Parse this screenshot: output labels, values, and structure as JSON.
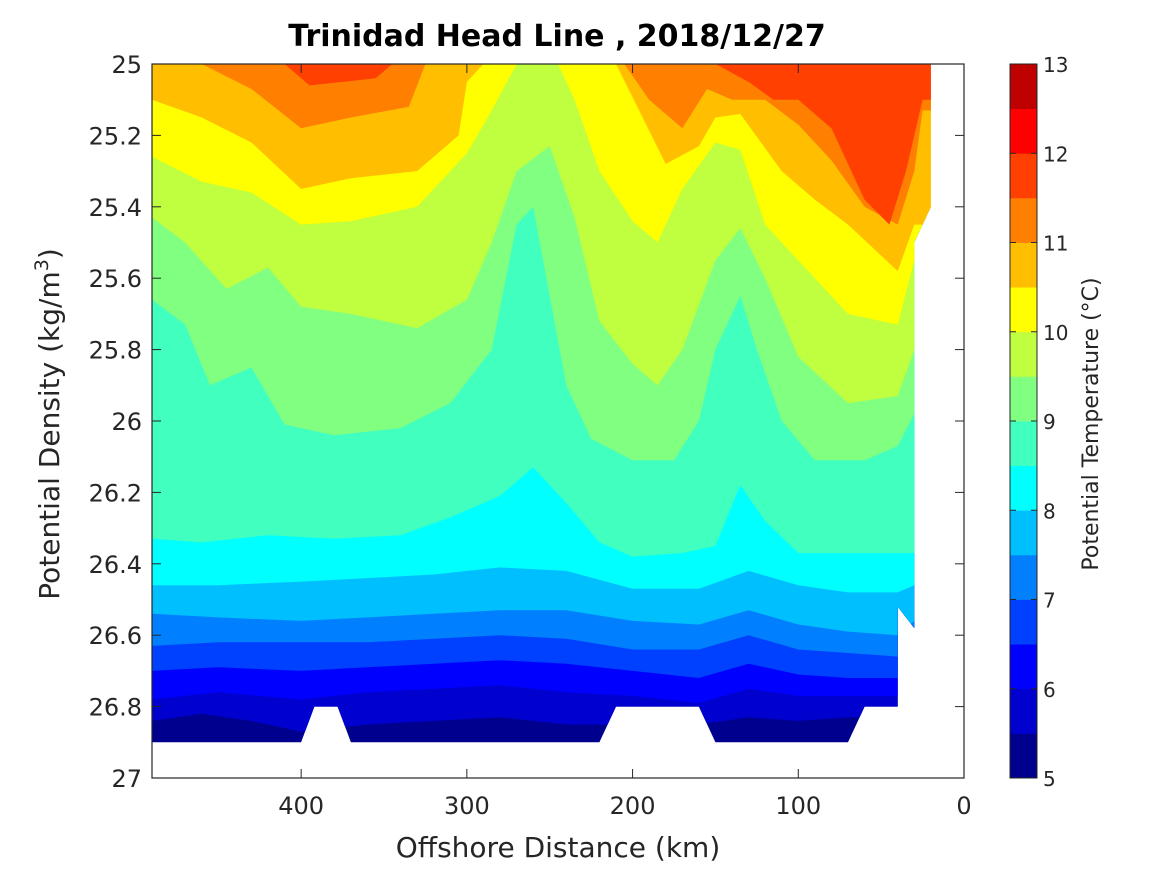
{
  "chart_data": {
    "type": "contour",
    "title": "Trinidad Head Line , 2018/12/27",
    "xlabel": "Offshore Distance (km)",
    "ylabel_prefix": "Potential Density (kg/m",
    "ylabel_sup": "3",
    "ylabel_suffix": ")",
    "xlim": [
      490,
      0
    ],
    "ylim": [
      25,
      27
    ],
    "x_ticks": [
      {
        "value": 400,
        "label": "400"
      },
      {
        "value": 300,
        "label": "300"
      },
      {
        "value": 200,
        "label": "200"
      },
      {
        "value": 100,
        "label": "100"
      },
      {
        "value": 0,
        "label": "0"
      }
    ],
    "y_ticks": [
      {
        "value": 25.0,
        "label": "25"
      },
      {
        "value": 25.2,
        "label": "25.2"
      },
      {
        "value": 25.4,
        "label": "25.4"
      },
      {
        "value": 25.6,
        "label": "25.6"
      },
      {
        "value": 25.8,
        "label": "25.8"
      },
      {
        "value": 26.0,
        "label": "26"
      },
      {
        "value": 26.2,
        "label": "26.2"
      },
      {
        "value": 26.4,
        "label": "26.4"
      },
      {
        "value": 26.6,
        "label": "26.6"
      },
      {
        "value": 26.8,
        "label": "26.8"
      },
      {
        "value": 27.0,
        "label": "27"
      }
    ],
    "colorbar": {
      "label": "Potential Temperature (°C)",
      "range": [
        5,
        13
      ],
      "levels": [
        5,
        5.5,
        6,
        6.5,
        7,
        7.5,
        8,
        8.5,
        9,
        9.5,
        10,
        10.5,
        11,
        11.5,
        12,
        12.5,
        13
      ],
      "colors": [
        "#00008f",
        "#0000cf",
        "#0000ff",
        "#0040ff",
        "#0080ff",
        "#00bfff",
        "#00ffff",
        "#40ffbf",
        "#80ff80",
        "#bfff40",
        "#ffff00",
        "#ffbf00",
        "#ff8000",
        "#ff4000",
        "#ff0000",
        "#bf0000"
      ],
      "ticks": [
        {
          "value": 5,
          "label": "5"
        },
        {
          "value": 6,
          "label": "6"
        },
        {
          "value": 7,
          "label": "7"
        },
        {
          "value": 8,
          "label": "8"
        },
        {
          "value": 9,
          "label": "9"
        },
        {
          "value": 10,
          "label": "10"
        },
        {
          "value": 11,
          "label": "11"
        },
        {
          "value": 12,
          "label": "12"
        },
        {
          "value": 13,
          "label": "13"
        }
      ]
    },
    "data_region": {
      "top_edge": [
        [
          490,
          25.0
        ],
        [
          20,
          25.0
        ],
        [
          20,
          25.4
        ],
        [
          30,
          25.5
        ],
        [
          30,
          26.58
        ],
        [
          40,
          26.52
        ],
        [
          40,
          26.8
        ]
      ],
      "bottom_edge": [
        [
          490,
          26.9
        ],
        [
          400,
          26.9
        ],
        [
          392,
          26.8
        ],
        [
          378,
          26.8
        ],
        [
          370,
          26.9
        ],
        [
          220,
          26.9
        ],
        [
          210,
          26.8
        ],
        [
          160,
          26.8
        ],
        [
          150,
          26.9
        ],
        [
          70,
          26.9
        ],
        [
          60,
          26.8
        ],
        [
          40,
          26.8
        ]
      ]
    },
    "isotherms": [
      {
        "t": 5.5,
        "points": [
          [
            490,
            26.84
          ],
          [
            460,
            26.82
          ],
          [
            430,
            26.84
          ],
          [
            400,
            26.87
          ],
          [
            380,
            26.86
          ],
          [
            360,
            26.85
          ],
          [
            320,
            26.84
          ],
          [
            280,
            26.83
          ],
          [
            240,
            26.85
          ],
          [
            200,
            26.85
          ],
          [
            160,
            26.85
          ],
          [
            130,
            26.83
          ],
          [
            100,
            26.84
          ],
          [
            70,
            26.83
          ],
          [
            40,
            26.83
          ]
        ]
      },
      {
        "t": 6,
        "points": [
          [
            490,
            26.78
          ],
          [
            450,
            26.76
          ],
          [
            400,
            26.78
          ],
          [
            360,
            26.76
          ],
          [
            320,
            26.75
          ],
          [
            280,
            26.74
          ],
          [
            240,
            26.76
          ],
          [
            200,
            26.77
          ],
          [
            160,
            26.79
          ],
          [
            130,
            26.75
          ],
          [
            100,
            26.77
          ],
          [
            70,
            26.77
          ],
          [
            40,
            26.77
          ]
        ]
      },
      {
        "t": 6.5,
        "points": [
          [
            490,
            26.7
          ],
          [
            450,
            26.69
          ],
          [
            400,
            26.7
          ],
          [
            360,
            26.69
          ],
          [
            320,
            26.68
          ],
          [
            280,
            26.67
          ],
          [
            240,
            26.68
          ],
          [
            200,
            26.7
          ],
          [
            160,
            26.72
          ],
          [
            130,
            26.68
          ],
          [
            100,
            26.71
          ],
          [
            70,
            26.72
          ],
          [
            40,
            26.72
          ]
        ]
      },
      {
        "t": 7,
        "points": [
          [
            490,
            26.63
          ],
          [
            450,
            26.62
          ],
          [
            400,
            26.62
          ],
          [
            360,
            26.62
          ],
          [
            320,
            26.61
          ],
          [
            280,
            26.6
          ],
          [
            240,
            26.61
          ],
          [
            200,
            26.64
          ],
          [
            160,
            26.64
          ],
          [
            130,
            26.6
          ],
          [
            100,
            26.64
          ],
          [
            70,
            26.65
          ],
          [
            40,
            26.66
          ]
        ]
      },
      {
        "t": 7.5,
        "points": [
          [
            490,
            26.54
          ],
          [
            450,
            26.55
          ],
          [
            400,
            26.56
          ],
          [
            360,
            26.55
          ],
          [
            320,
            26.54
          ],
          [
            280,
            26.53
          ],
          [
            240,
            26.53
          ],
          [
            200,
            26.56
          ],
          [
            160,
            26.57
          ],
          [
            130,
            26.53
          ],
          [
            100,
            26.57
          ],
          [
            70,
            26.59
          ],
          [
            40,
            26.6
          ],
          [
            30,
            26.56
          ]
        ]
      },
      {
        "t": 8,
        "points": [
          [
            490,
            26.46
          ],
          [
            450,
            26.46
          ],
          [
            400,
            26.45
          ],
          [
            360,
            26.44
          ],
          [
            320,
            26.43
          ],
          [
            280,
            26.41
          ],
          [
            240,
            26.42
          ],
          [
            200,
            26.47
          ],
          [
            160,
            26.47
          ],
          [
            130,
            26.42
          ],
          [
            100,
            26.46
          ],
          [
            70,
            26.48
          ],
          [
            40,
            26.48
          ],
          [
            30,
            26.46
          ]
        ]
      },
      {
        "t": 8.5,
        "points": [
          [
            490,
            26.33
          ],
          [
            460,
            26.34
          ],
          [
            420,
            26.32
          ],
          [
            380,
            26.33
          ],
          [
            340,
            26.32
          ],
          [
            310,
            26.27
          ],
          [
            280,
            26.21
          ],
          [
            260,
            26.13
          ],
          [
            240,
            26.23
          ],
          [
            220,
            26.34
          ],
          [
            200,
            26.38
          ],
          [
            170,
            26.37
          ],
          [
            150,
            26.35
          ],
          [
            135,
            26.18
          ],
          [
            120,
            26.28
          ],
          [
            100,
            26.37
          ],
          [
            70,
            26.37
          ],
          [
            40,
            26.37
          ],
          [
            30,
            26.37
          ]
        ]
      },
      {
        "t": 9,
        "points": [
          [
            490,
            25.66
          ],
          [
            470,
            25.73
          ],
          [
            455,
            25.9
          ],
          [
            430,
            25.85
          ],
          [
            410,
            26.01
          ],
          [
            380,
            26.04
          ],
          [
            340,
            26.02
          ],
          [
            310,
            25.95
          ],
          [
            285,
            25.8
          ],
          [
            270,
            25.45
          ],
          [
            260,
            25.4
          ],
          [
            250,
            25.65
          ],
          [
            240,
            25.9
          ],
          [
            225,
            26.05
          ],
          [
            200,
            26.11
          ],
          [
            175,
            26.11
          ],
          [
            160,
            26.0
          ],
          [
            150,
            25.8
          ],
          [
            135,
            25.65
          ],
          [
            125,
            25.8
          ],
          [
            110,
            26.0
          ],
          [
            90,
            26.11
          ],
          [
            60,
            26.11
          ],
          [
            40,
            26.07
          ],
          [
            30,
            25.98
          ]
        ]
      },
      {
        "t": 9.5,
        "points": [
          [
            490,
            25.43
          ],
          [
            470,
            25.5
          ],
          [
            445,
            25.63
          ],
          [
            420,
            25.57
          ],
          [
            400,
            25.68
          ],
          [
            370,
            25.7
          ],
          [
            330,
            25.74
          ],
          [
            300,
            25.66
          ],
          [
            285,
            25.5
          ],
          [
            270,
            25.3
          ],
          [
            250,
            25.23
          ],
          [
            235,
            25.43
          ],
          [
            220,
            25.72
          ],
          [
            200,
            25.84
          ],
          [
            185,
            25.9
          ],
          [
            170,
            25.8
          ],
          [
            150,
            25.55
          ],
          [
            135,
            25.46
          ],
          [
            120,
            25.6
          ],
          [
            100,
            25.82
          ],
          [
            70,
            25.95
          ],
          [
            40,
            25.93
          ],
          [
            30,
            25.8
          ]
        ]
      },
      {
        "t": 10,
        "points": [
          [
            490,
            25.26
          ],
          [
            460,
            25.33
          ],
          [
            430,
            25.36
          ],
          [
            400,
            25.45
          ],
          [
            370,
            25.44
          ],
          [
            330,
            25.4
          ],
          [
            300,
            25.25
          ],
          [
            285,
            25.13
          ],
          [
            270,
            25.0
          ],
          [
            245,
            25.0
          ],
          [
            235,
            25.1
          ],
          [
            220,
            25.3
          ],
          [
            200,
            25.44
          ],
          [
            185,
            25.5
          ],
          [
            170,
            25.35
          ],
          [
            150,
            25.22
          ],
          [
            135,
            25.24
          ],
          [
            120,
            25.45
          ],
          [
            100,
            25.55
          ],
          [
            70,
            25.7
          ],
          [
            40,
            25.73
          ],
          [
            30,
            25.55
          ]
        ]
      },
      {
        "t": 10.5,
        "points": [
          [
            490,
            25.1
          ],
          [
            460,
            25.15
          ],
          [
            430,
            25.22
          ],
          [
            400,
            25.35
          ],
          [
            370,
            25.32
          ],
          [
            330,
            25.3
          ],
          [
            305,
            25.2
          ],
          [
            300,
            25.05
          ],
          [
            290,
            25.0
          ],
          [
            210,
            25.0
          ],
          [
            195,
            25.14
          ],
          [
            180,
            25.28
          ],
          [
            160,
            25.23
          ],
          [
            150,
            25.15
          ],
          [
            135,
            25.14
          ],
          [
            110,
            25.3
          ],
          [
            90,
            25.38
          ],
          [
            70,
            25.45
          ],
          [
            40,
            25.58
          ],
          [
            30,
            25.45
          ]
        ]
      },
      {
        "t": 11,
        "points": [
          [
            460,
            25.0
          ],
          [
            430,
            25.07
          ],
          [
            400,
            25.18
          ],
          [
            370,
            25.15
          ],
          [
            335,
            25.12
          ],
          [
            325,
            25.0
          ],
          [
            205,
            25.0
          ],
          [
            190,
            25.1
          ],
          [
            170,
            25.18
          ],
          [
            155,
            25.07
          ],
          [
            140,
            25.1
          ],
          [
            120,
            25.1
          ],
          [
            100,
            25.17
          ],
          [
            80,
            25.27
          ],
          [
            60,
            25.4
          ],
          [
            40,
            25.45
          ],
          [
            30,
            25.3
          ],
          [
            25,
            25.13
          ]
        ]
      },
      {
        "t": 11.5,
        "points": [
          [
            410,
            25.0
          ],
          [
            395,
            25.06
          ],
          [
            375,
            25.05
          ],
          [
            355,
            25.04
          ],
          [
            345,
            25.0
          ]
        ]
      },
      {
        "t": 11.5,
        "points": [
          [
            150,
            25.0
          ],
          [
            130,
            25.05
          ],
          [
            115,
            25.1
          ],
          [
            100,
            25.1
          ],
          [
            80,
            25.18
          ],
          [
            60,
            25.38
          ],
          [
            45,
            25.45
          ],
          [
            35,
            25.3
          ],
          [
            25,
            25.1
          ]
        ]
      }
    ]
  }
}
